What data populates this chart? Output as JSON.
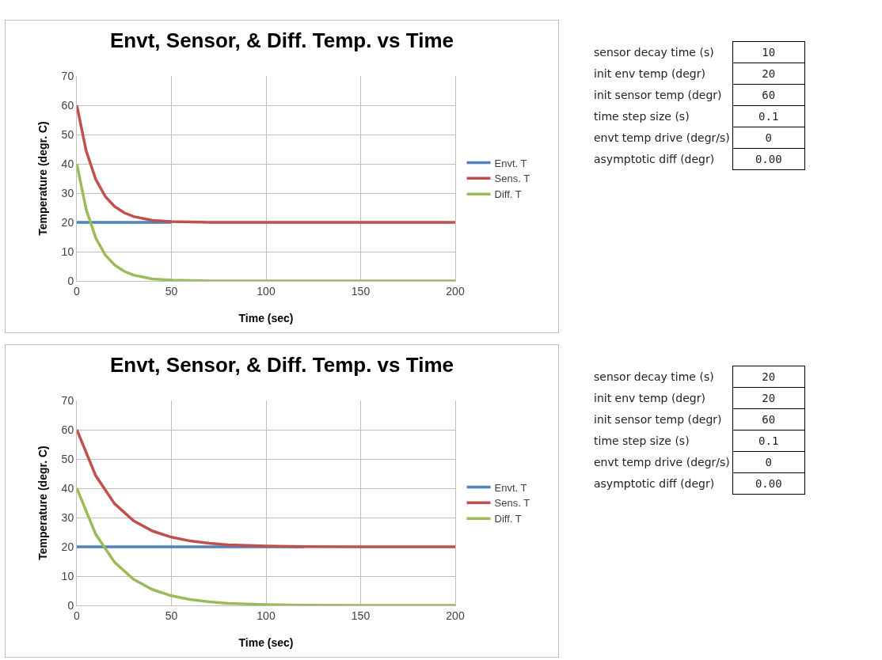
{
  "chart_data": [
    {
      "type": "line",
      "title": "Envt, Sensor, & Diff. Temp. vs Time",
      "xlabel": "Time (sec)",
      "ylabel": "Temperature (degr. C)",
      "xlim": [
        0,
        200
      ],
      "xticks": [
        0,
        50,
        100,
        150,
        200
      ],
      "ylim": [
        0,
        70
      ],
      "yticks": [
        0,
        10,
        20,
        30,
        40,
        50,
        60,
        70
      ],
      "grid": true,
      "legend": "right",
      "marker": "none",
      "line_style": "solid",
      "x": [
        0,
        5,
        10,
        15,
        20,
        25,
        30,
        40,
        50,
        70,
        100,
        150,
        200
      ],
      "series": [
        {
          "name": "Envt. T",
          "color": "#4f81bd",
          "values": [
            20,
            20,
            20,
            20,
            20,
            20,
            20,
            20,
            20,
            null,
            null,
            null,
            null
          ]
        },
        {
          "name": "Sens. T",
          "color": "#c0504d",
          "values": [
            60,
            44.3,
            34.7,
            28.9,
            25.4,
            23.3,
            22,
            20.7,
            20.3,
            20,
            20,
            20,
            20
          ]
        },
        {
          "name": "Diff. T",
          "color": "#9bbb59",
          "values": [
            40,
            24.3,
            14.7,
            8.9,
            5.4,
            3.3,
            2,
            0.7,
            0.3,
            0,
            0,
            0,
            0
          ]
        }
      ]
    },
    {
      "type": "other",
      "categories": [
        "sensor decay time (s)",
        "init env temp (degr)",
        "init sensor temp (degr)",
        "time step size (s)",
        "envt temp drive (degr/s)",
        "asymptotic diff (degr)"
      ],
      "value_labels": [
        "10",
        "20",
        "60",
        "0.1",
        "0",
        "0.00"
      ]
    },
    {
      "type": "line",
      "title": "Envt, Sensor, & Diff. Temp. vs Time",
      "xlabel": "Time (sec)",
      "ylabel": "Temperature (degr. C)",
      "xlim": [
        0,
        200
      ],
      "xticks": [
        0,
        50,
        100,
        150,
        200
      ],
      "ylim": [
        0,
        70
      ],
      "yticks": [
        0,
        10,
        20,
        30,
        40,
        50,
        60,
        70
      ],
      "grid": true,
      "legend": "right",
      "marker": "none",
      "line_style": "solid",
      "x": [
        0,
        10,
        20,
        30,
        40,
        50,
        60,
        70,
        80,
        100,
        120,
        150,
        200
      ],
      "series": [
        {
          "name": "Envt. T",
          "color": "#4f81bd",
          "values": [
            20,
            20,
            20,
            20,
            20,
            20,
            20,
            20,
            20,
            20,
            20,
            null,
            null
          ]
        },
        {
          "name": "Sens. T",
          "color": "#c0504d",
          "values": [
            60,
            44.3,
            34.7,
            28.9,
            25.4,
            23.3,
            22,
            21.2,
            20.7,
            20.3,
            20.1,
            20,
            20
          ]
        },
        {
          "name": "Diff. T",
          "color": "#9bbb59",
          "values": [
            40,
            24.3,
            14.7,
            8.9,
            5.4,
            3.3,
            2,
            1.2,
            0.7,
            0.3,
            0.1,
            0,
            0
          ]
        }
      ]
    },
    {
      "type": "other",
      "categories": [
        "sensor decay time (s)",
        "init env temp (degr)",
        "init sensor temp (degr)",
        "time step size (s)",
        "envt temp drive (degr/s)",
        "asymptotic diff (degr)"
      ],
      "value_labels": [
        "20",
        "20",
        "60",
        "0.1",
        "0",
        "0.00"
      ]
    }
  ]
}
